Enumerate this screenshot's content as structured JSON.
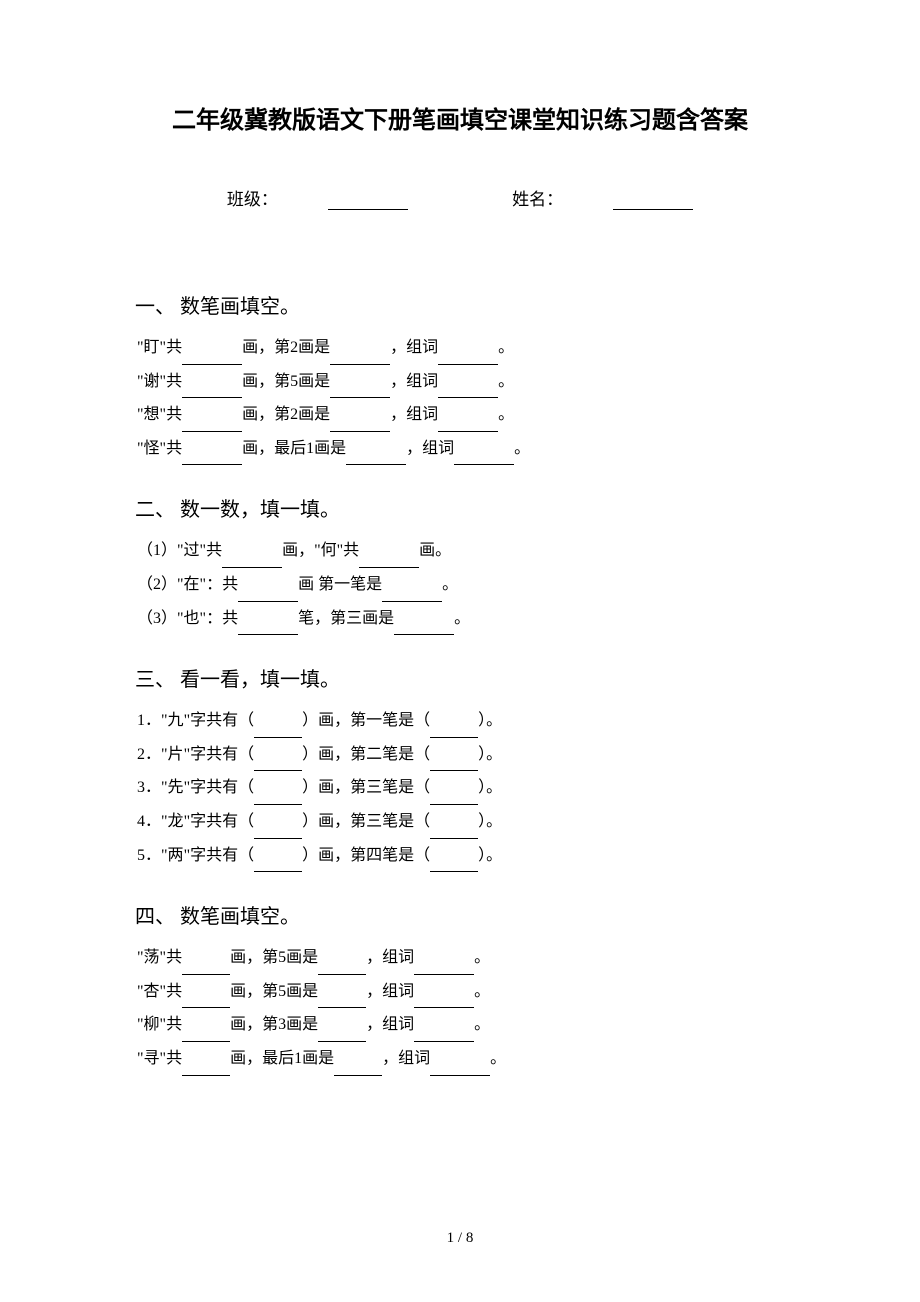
{
  "title": "二年级冀教版语文下册笔画填空课堂知识练习题含答案",
  "info": {
    "class_label": "班级：",
    "name_label": "姓名："
  },
  "section1": {
    "header": "一、 数笔画填空。",
    "lines": [
      {
        "char": "盯",
        "middle": "画，第2画是",
        "suffix": "，组词",
        "end": "。"
      },
      {
        "char": "谢",
        "middle": "画，第5画是",
        "suffix": "，组词",
        "end": "。"
      },
      {
        "char": "想",
        "middle": "画，第2画是",
        "suffix": "，组词",
        "end": "。"
      },
      {
        "char": "怪",
        "middle": "画，最后1画是",
        "suffix": "，组词",
        "end": "。"
      }
    ]
  },
  "section2": {
    "header": "二、 数一数，填一填。",
    "lines": [
      {
        "prefix": "（1）\"过\"共",
        "middle": "画，\"何\"共",
        "end": "画。"
      },
      {
        "prefix": "（2）\"在\"：共",
        "middle": "画 第一笔是",
        "end": "。"
      },
      {
        "prefix": "（3）\"也\"：共",
        "middle": "笔，第三画是",
        "end": "。"
      }
    ]
  },
  "section3": {
    "header": "三、 看一看，填一填。",
    "lines": [
      {
        "num": "1．",
        "char": "九",
        "middle": "）画，第一笔是（",
        "end": "）。"
      },
      {
        "num": "2．",
        "char": "片",
        "middle": "）画，第二笔是（",
        "end": "）。"
      },
      {
        "num": "3．",
        "char": "先",
        "middle": "）画，第三笔是（",
        "end": "）。"
      },
      {
        "num": "4．",
        "char": "龙",
        "middle": "）画，第三笔是（",
        "end": "）。"
      },
      {
        "num": "5．",
        "char": "两",
        "middle": "）画，第四笔是（",
        "end": "）。"
      }
    ]
  },
  "section4": {
    "header": "四、 数笔画填空。",
    "lines": [
      {
        "char": "荡",
        "middle": "画，第5画是",
        "suffix": "，组词",
        "end": "。"
      },
      {
        "char": "杏",
        "middle": "画，第5画是",
        "suffix": "，组词",
        "end": "。"
      },
      {
        "char": "柳",
        "middle": "画，第3画是",
        "suffix": "，组词",
        "end": "。"
      },
      {
        "char": "寻",
        "middle": "画，最后1画是",
        "suffix": "，组词",
        "end": "。"
      }
    ]
  },
  "footer": "1 / 8"
}
